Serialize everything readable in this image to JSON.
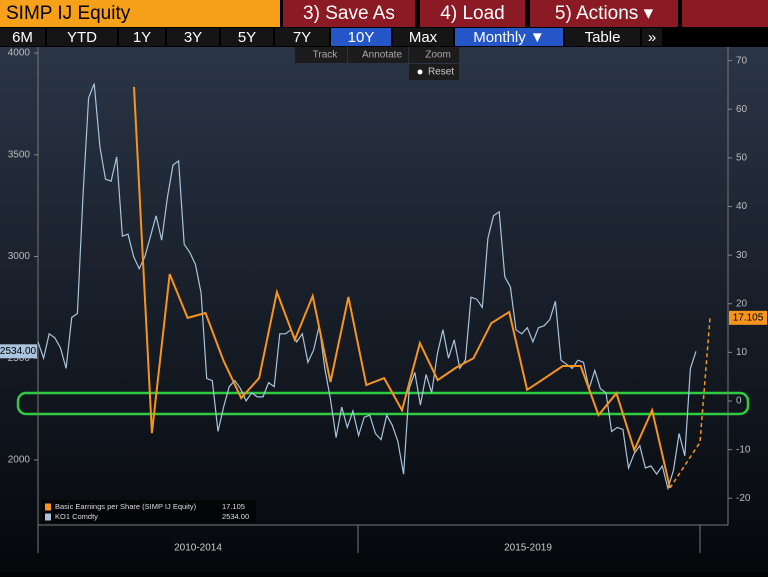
{
  "header": {
    "title": "SIMP IJ Equity",
    "buttons": [
      "3) Save As",
      "4) Load",
      "5) Actions ▾"
    ]
  },
  "toolbar": {
    "ranges": [
      {
        "label": "6M",
        "selected": false
      },
      {
        "label": "YTD",
        "selected": false
      },
      {
        "label": "1Y",
        "selected": false
      },
      {
        "label": "3Y",
        "selected": false
      },
      {
        "label": "5Y",
        "selected": false
      },
      {
        "label": "7Y",
        "selected": false
      },
      {
        "label": "10Y",
        "selected": true
      },
      {
        "label": "Max",
        "selected": false
      },
      {
        "label": "Monthly ▼",
        "selected": true
      },
      {
        "label": "Table",
        "selected": false
      },
      {
        "label": "»",
        "selected": false
      }
    ],
    "tools": [
      "Track",
      "Annotate",
      "Zoom"
    ],
    "reset": "Reset"
  },
  "chart_data": {
    "type": "line",
    "periods": [
      "2010-2014",
      "2015-2019"
    ],
    "ylim": [
      1680,
      4030
    ],
    "yticks": [
      2000,
      2500,
      3000,
      3500,
      4000
    ],
    "y2lim": [
      -25.5,
      72.8
    ],
    "y2ticks": [
      -20,
      -10,
      0,
      10,
      20,
      30,
      40,
      50,
      60,
      70
    ],
    "series": [
      {
        "name": "Basic Earnings per Share (SIMP IJ Equity)",
        "color": "#f7941d",
        "axis": "y2",
        "last_value": 17.105,
        "values": [
          64.6,
          -6.6,
          26.1,
          17.1,
          18.1,
          8.4,
          0.6,
          4.7,
          22.4,
          12.6,
          21.6,
          3.9,
          21.4,
          3.3,
          4.7,
          -1.9,
          11.9,
          4.3,
          6.8,
          8.8,
          16,
          18.3,
          2.3,
          4.7,
          7.2,
          7.2,
          -2.9,
          1.6,
          -10.1,
          -1.9,
          -17.9
        ],
        "projection": [
          -17.9,
          -8.5,
          17.105
        ]
      },
      {
        "name": "KO1 Comdty",
        "color": "#a9c4dc",
        "last_label": "2534.00",
        "values": [
          2580,
          2500,
          2620,
          2600,
          2550,
          2450,
          2700,
          2720,
          3300,
          3780,
          3850,
          3540,
          3380,
          3370,
          3490,
          3100,
          3110,
          3000,
          2940,
          3000,
          3100,
          3200,
          3080,
          3290,
          3450,
          3470,
          3060,
          3020,
          2960,
          2820,
          2400,
          2390,
          2140,
          2260,
          2360,
          2390,
          2350,
          2290,
          2330,
          2310,
          2310,
          2380,
          2360,
          2620,
          2620,
          2640,
          2580,
          2620,
          2480,
          2540,
          2660,
          2450,
          2300,
          2110,
          2260,
          2160,
          2240,
          2120,
          2210,
          2220,
          2130,
          2100,
          2220,
          2170,
          2090,
          1930,
          2350,
          2430,
          2270,
          2420,
          2330,
          2520,
          2640,
          2500,
          2590,
          2450,
          2490,
          2800,
          2790,
          2750,
          3090,
          3200,
          3220,
          2900,
          2850,
          2640,
          2620,
          2650,
          2580,
          2650,
          2660,
          2690,
          2780,
          2490,
          2470,
          2450,
          2490,
          2480,
          2350,
          2440,
          2350,
          2330,
          2140,
          2160,
          2150,
          1960,
          2030,
          2070,
          1960,
          1970,
          1930,
          1970,
          1860,
          1950,
          2130,
          2020,
          2450,
          2534
        ]
      }
    ]
  }
}
